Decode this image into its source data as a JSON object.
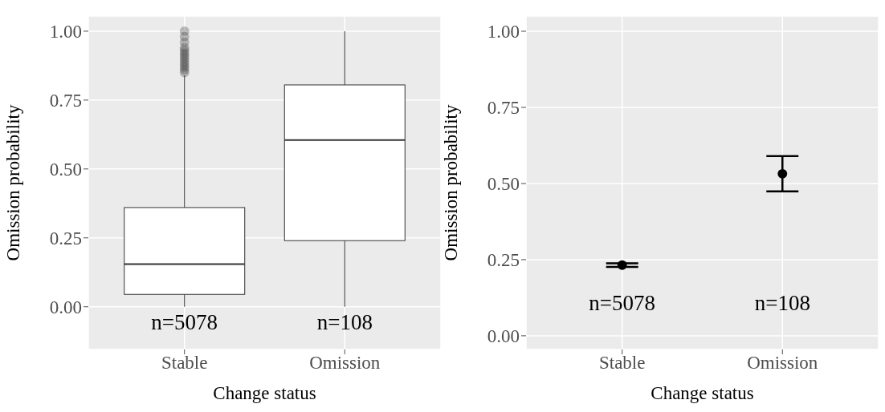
{
  "chart_data": [
    {
      "type": "box",
      "categories": [
        "Stable",
        "Omission"
      ],
      "xlabel": "Change status",
      "ylabel": "Omission probability",
      "ylim": [
        -0.155,
        1.055
      ],
      "yticks": [
        {
          "value": 0,
          "label": "0.00"
        },
        {
          "value": 0.25,
          "label": "0.25"
        },
        {
          "value": 0.5,
          "label": "0.50"
        },
        {
          "value": 0.75,
          "label": "0.75"
        },
        {
          "value": 1,
          "label": "1.00"
        }
      ],
      "grid": true,
      "boxes": [
        {
          "low": 0,
          "q1": 0.045,
          "median": 0.155,
          "q3": 0.36,
          "high": 0.84,
          "outliers": [
            0.85,
            0.86,
            0.87,
            0.88,
            0.89,
            0.9,
            0.91,
            0.92,
            0.93,
            0.94,
            0.96,
            0.98,
            1.0
          ]
        },
        {
          "low": 0,
          "q1": 0.24,
          "median": 0.605,
          "q3": 0.805,
          "high": 1.0
        }
      ],
      "annotations": [
        "n=5078",
        "n=108"
      ]
    },
    {
      "type": "scatter",
      "categories": [
        "Stable",
        "Omission"
      ],
      "xlabel": "Change status",
      "ylabel": "Omission probability",
      "ylim": [
        -0.045,
        1.05
      ],
      "yticks": [
        {
          "value": 0,
          "label": "0.00"
        },
        {
          "value": 0.25,
          "label": "0.25"
        },
        {
          "value": 0.5,
          "label": "0.50"
        },
        {
          "value": 0.75,
          "label": "0.75"
        },
        {
          "value": 1,
          "label": "1.00"
        }
      ],
      "grid": true,
      "marker": "circle",
      "color": "#000000",
      "values": [
        0.232,
        0.532
      ],
      "errors": [
        [
          0.226,
          0.238
        ],
        [
          0.474,
          0.59
        ]
      ],
      "annotations": [
        "n=5078",
        "n=108"
      ]
    }
  ]
}
